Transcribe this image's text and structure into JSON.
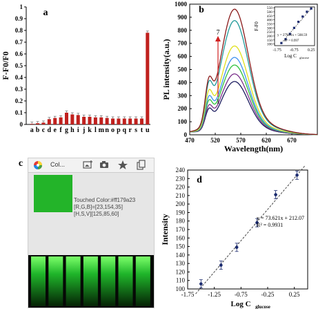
{
  "chart_data": [
    {
      "panel": "a",
      "type": "bar",
      "categories": [
        "a",
        "b",
        "c",
        "d",
        "e",
        "f",
        "g",
        "h",
        "i",
        "j",
        "k",
        "l",
        "m",
        "n",
        "o",
        "p",
        "q",
        "r",
        "s",
        "t",
        "u"
      ],
      "values": [
        0.005,
        0.01,
        0.015,
        0.045,
        0.055,
        0.06,
        0.1,
        0.085,
        0.08,
        0.065,
        0.065,
        0.06,
        0.06,
        0.055,
        0.05,
        0.05,
        0.05,
        0.05,
        0.05,
        0.05,
        0.78
      ],
      "ylabel": "F-F0/F0",
      "ylim": [
        0,
        1
      ],
      "yticks": [
        "0",
        "0.1",
        "0.2",
        "0.3",
        "0.4",
        "0.5",
        "0.6",
        "0.7",
        "0.8",
        "0.9",
        "1"
      ],
      "bar_color": "#c0201d"
    },
    {
      "panel": "b",
      "type": "line",
      "xlabel": "Wavelength(nm)",
      "ylabel": "PL intensity(a.u.)",
      "xlim": [
        470,
        720
      ],
      "ylim": [
        0,
        1000
      ],
      "xticks": [
        "470",
        "520",
        "570",
        "620",
        "670"
      ],
      "yticks": [
        "0",
        "100",
        "200",
        "300",
        "400",
        "500",
        "600",
        "700",
        "800",
        "900",
        "1000"
      ],
      "arrow_label_top": "7",
      "arrow_label_bottom": "1",
      "series": [
        {
          "peak": 420,
          "shoulder": 125,
          "color": "#1a1a5e"
        },
        {
          "peak": 480,
          "shoulder": 140,
          "color": "#7a2f8a"
        },
        {
          "peak": 550,
          "shoulder": 165,
          "color": "#2ec23a"
        },
        {
          "peak": 610,
          "shoulder": 185,
          "color": "#3f90f0"
        },
        {
          "peak": 700,
          "shoulder": 215,
          "color": "#e0e01a"
        },
        {
          "peak": 900,
          "shoulder": 245,
          "color": "#1f9a9a"
        },
        {
          "peak": 990,
          "shoulder": 260,
          "color": "#8a1a1a"
        }
      ]
    },
    {
      "panel": "b-inset",
      "type": "scatter",
      "xlabel": "Log C",
      "xlabel_sub": "glucose",
      "ylabel": "F-F0",
      "xlim": [
        -1.9,
        0.45
      ],
      "ylim": [
        80,
        560
      ],
      "xticks": [
        "-1.75",
        "-0.75",
        "0.25"
      ],
      "yticks": [
        "100",
        "150",
        "200",
        "250",
        "300",
        "350",
        "400",
        "450",
        "500",
        "550"
      ],
      "x": [
        -1.5,
        -1.25,
        -1.0,
        -0.75,
        -0.5,
        -0.25,
        0.0,
        0.25
      ],
      "y": [
        112,
        160,
        225,
        300,
        375,
        440,
        500,
        540
      ],
      "fit_label": "y = 279.91x + 508.59",
      "r2_label": "R² = 0.997"
    },
    {
      "panel": "d",
      "type": "scatter",
      "xlabel": "Log C",
      "xlabel_sub": "glucose",
      "ylabel": "Intensity",
      "xlim": [
        -1.75,
        0.5
      ],
      "ylim": [
        100,
        240
      ],
      "xticks": [
        "-1.75",
        "-1.25",
        "-0.75",
        "-0.25",
        "0.25"
      ],
      "yticks": [
        "100",
        "110",
        "120",
        "130",
        "140",
        "150",
        "160",
        "170",
        "180",
        "190",
        "200",
        "210",
        "220",
        "230",
        "240"
      ],
      "x": [
        -1.5,
        -1.125,
        -0.83,
        -0.45,
        -0.1,
        0.3
      ],
      "y": [
        106,
        128,
        149,
        178,
        211,
        234
      ],
      "fit_label": "y = 73.621x + 212.07",
      "r2_label": "R² = 0.9931"
    }
  ],
  "panel_labels": {
    "a": "a",
    "b": "b",
    "c": "c",
    "d": "d"
  },
  "panel_c": {
    "title": "Col...",
    "touched": "Touched Color:#ff179a23",
    "rgb": "[R,G,B]=[23,154,35]",
    "hsv": "[H,S,V][125,85,60]",
    "swatch_color": "#23b429",
    "tile_count": 7
  }
}
